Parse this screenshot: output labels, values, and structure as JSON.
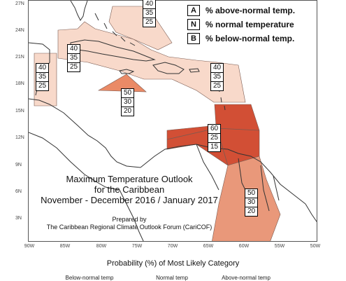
{
  "legend": {
    "rows": [
      {
        "letter": "A",
        "text": "% above-normal temp."
      },
      {
        "letter": "N",
        "text": "% normal temperature"
      },
      {
        "letter": "B",
        "text": "% below-normal temp."
      }
    ]
  },
  "colors": {
    "above_40": "#f8d9ca",
    "above_50": "#ea8a66",
    "above_60": "#d24f35",
    "below_50": "#e9987a",
    "land_outline": "#333333",
    "region_border": "#7a5a50"
  },
  "lat_labels": [
    "27N",
    "24N",
    "21N",
    "18N",
    "15N",
    "12N",
    "9N",
    "6N",
    "3N"
  ],
  "lon_labels": [
    "90W",
    "85W",
    "80W",
    "75W",
    "70W",
    "65W",
    "60W",
    "55W",
    "50W"
  ],
  "regions": [
    {
      "name": "northern-caribbean",
      "above": "40",
      "normal": "35",
      "below": "25"
    },
    {
      "name": "bahamas-north",
      "above": "40",
      "normal": "35",
      "below": "25"
    },
    {
      "name": "belize",
      "above": "40",
      "normal": "35",
      "below": "25"
    },
    {
      "name": "eastern-caribbean",
      "above": "40",
      "normal": "35",
      "below": "25"
    },
    {
      "name": "jamaica-south",
      "above": "50",
      "normal": "30",
      "below": "20"
    },
    {
      "name": "southern-caribbean",
      "above": "60",
      "normal": "25",
      "below": "15"
    },
    {
      "name": "guianas",
      "above": "50",
      "normal": "30",
      "below": "20"
    }
  ],
  "title": {
    "line1": "Maximum Temperature Outlook",
    "line2": "for the Caribbean",
    "line3": "November - December 2016 / January 2017"
  },
  "prepared": {
    "line1": "Prepared by",
    "line2": "The Caribbean Regional Climate Outlook Forum (CariCOF)"
  },
  "probability_heading": "Probability (%) of Most Likely Category",
  "categories": [
    "Below-normal temp",
    "Normal temp",
    "Above-normal temp"
  ]
}
